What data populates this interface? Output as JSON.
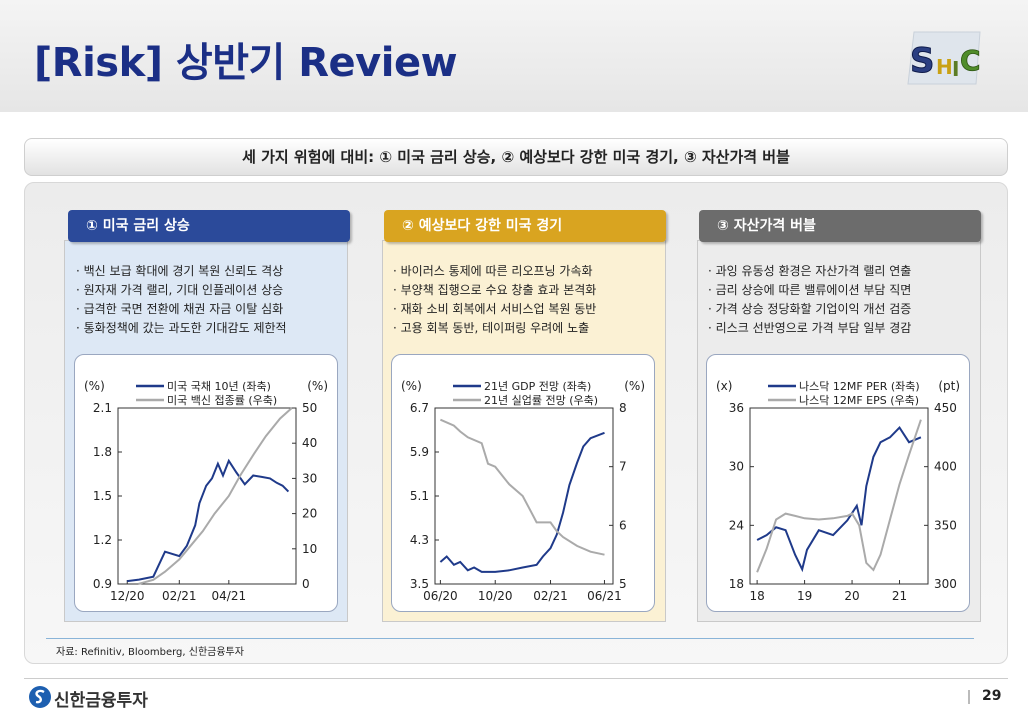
{
  "header": {
    "title": "[Risk] 상반기 Review",
    "logo_letters": [
      "S",
      "H",
      "I",
      "C"
    ]
  },
  "subtitle": "세 가지 위험에 대비: ① 미국 금리 상승, ② 예상보다 강한 미국 경기, ③ 자산가격 버블",
  "columns": [
    {
      "title": "① 미국 금리 상승",
      "header_color": "#2b4a9a",
      "bg_color": "#dde8f5",
      "bullets": [
        "· 백신 보급 확대에 경기 복원 신뢰도 격상",
        "· 원자재 가격 랠리, 기대 인플레이션 상승",
        "· 급격한 국면 전환에 채권 자금 이탈 심화",
        "· 통화정책에 갔는 과도한 기대감도 제한적"
      ]
    },
    {
      "title": "② 예상보다 강한 미국 경기",
      "header_color": "#d9a420",
      "bg_color": "#fbf1d4",
      "bullets": [
        "· 바이러스 통제에 따른 리오프닝 가속화",
        "· 부양책 집행으로 수요 창출 효과 본격화",
        "· 재화 소비 회복에서 서비스업 복원 동반",
        "· 고용 회복 동반, 테이퍼링 우려에 노출"
      ]
    },
    {
      "title": "③ 자산가격 버블",
      "header_color": "#6c6c6c",
      "bg_color": "#ececec",
      "bullets": [
        "· 과잉 유동성 환경은 자산가격 랠리 연출",
        "· 금리 상승에 따른 밸류에이션 부담 직면",
        "· 가격 상승 정당화할 기업이익 개선 검증",
        "· 리스크 선반영으로 가격 부담 일부 경감"
      ]
    }
  ],
  "chart_data": [
    {
      "type": "line",
      "left_unit": "(%)",
      "right_unit": "(%)",
      "left_ticks": [
        "2.1",
        "1.8",
        "1.5",
        "1.2",
        "0.9"
      ],
      "right_ticks": [
        "50",
        "40",
        "30",
        "20",
        "10",
        "0"
      ],
      "x_ticks": [
        "12/20",
        "02/21",
        "04/21"
      ],
      "ylim_left": [
        0.9,
        2.1
      ],
      "ylim_right": [
        0,
        50
      ],
      "series": [
        {
          "name": "미국 국채 10년 (좌축)",
          "axis": "left",
          "color": "#1f3a8a",
          "x": [
            "2020-12-01",
            "2020-12-15",
            "2021-01-01",
            "2021-01-15",
            "2021-02-01",
            "2021-02-10",
            "2021-02-20",
            "2021-02-25",
            "2021-03-05",
            "2021-03-12",
            "2021-03-19",
            "2021-03-25",
            "2021-04-01",
            "2021-04-10",
            "2021-04-20",
            "2021-04-30",
            "2021-05-10",
            "2021-05-20",
            "2021-05-28",
            "2021-06-04",
            "2021-06-11"
          ],
          "y": [
            0.92,
            0.93,
            0.95,
            1.12,
            1.09,
            1.16,
            1.3,
            1.45,
            1.57,
            1.62,
            1.72,
            1.64,
            1.74,
            1.66,
            1.58,
            1.64,
            1.63,
            1.62,
            1.59,
            1.57,
            1.53
          ]
        },
        {
          "name": "미국 백신 접종률 (우축)",
          "axis": "right",
          "color": "#aaaaaa",
          "x": [
            "2020-12-14",
            "2021-01-01",
            "2021-01-15",
            "2021-02-01",
            "2021-02-15",
            "2021-03-01",
            "2021-03-15",
            "2021-04-01",
            "2021-04-15",
            "2021-05-01",
            "2021-05-15",
            "2021-06-01",
            "2021-06-15"
          ],
          "y": [
            0,
            1.2,
            3.5,
            7,
            11,
            15,
            20,
            25,
            31,
            37,
            42,
            47,
            50
          ]
        }
      ]
    },
    {
      "type": "line",
      "left_unit": "(%)",
      "right_unit": "(%)",
      "left_ticks": [
        "6.7",
        "5.9",
        "5.1",
        "4.3",
        "3.5"
      ],
      "right_ticks": [
        "8",
        "7",
        "6",
        "5"
      ],
      "x_ticks": [
        "06/20",
        "10/20",
        "02/21",
        "06/21"
      ],
      "ylim_left": [
        3.5,
        6.7
      ],
      "ylim_right": [
        5,
        8
      ],
      "series": [
        {
          "name": "21년 GDP 전망 (좌축)",
          "axis": "left",
          "color": "#1f3a8a",
          "x": [
            "2020-06-01",
            "2020-06-15",
            "2020-07-01",
            "2020-07-15",
            "2020-08-01",
            "2020-08-15",
            "2020-09-01",
            "2020-10-01",
            "2020-11-01",
            "2020-12-01",
            "2021-01-01",
            "2021-01-15",
            "2021-02-01",
            "2021-02-15",
            "2021-03-01",
            "2021-03-15",
            "2021-04-01",
            "2021-04-15",
            "2021-05-01",
            "2021-06-01"
          ],
          "y": [
            3.9,
            4.0,
            3.85,
            3.9,
            3.75,
            3.8,
            3.72,
            3.72,
            3.75,
            3.8,
            3.85,
            4.0,
            4.15,
            4.4,
            4.8,
            5.3,
            5.7,
            6.0,
            6.15,
            6.25
          ]
        },
        {
          "name": "21년 실업률 전망 (우축)",
          "axis": "right",
          "color": "#aaaaaa",
          "x": [
            "2020-06-01",
            "2020-07-01",
            "2020-07-15",
            "2020-08-01",
            "2020-09-01",
            "2020-09-15",
            "2020-10-01",
            "2020-11-01",
            "2020-12-01",
            "2020-12-15",
            "2021-01-01",
            "2021-02-01",
            "2021-02-15",
            "2021-03-01",
            "2021-04-01",
            "2021-05-01",
            "2021-06-01"
          ],
          "y": [
            7.8,
            7.7,
            7.6,
            7.5,
            7.4,
            7.05,
            7.0,
            6.7,
            6.5,
            6.3,
            6.05,
            6.05,
            5.9,
            5.8,
            5.65,
            5.55,
            5.5
          ]
        }
      ]
    },
    {
      "type": "line",
      "left_unit": "(x)",
      "right_unit": "(pt)",
      "left_ticks": [
        "36",
        "30",
        "24",
        "18"
      ],
      "right_ticks": [
        "450",
        "400",
        "350",
        "300"
      ],
      "x_ticks": [
        "18",
        "19",
        "20",
        "21"
      ],
      "ylim_left": [
        18,
        36
      ],
      "ylim_right": [
        300,
        450
      ],
      "series": [
        {
          "name": "나스닥 12MF PER (좌축)",
          "axis": "left",
          "color": "#1f3a8a",
          "x": [
            2018.0,
            2018.2,
            2018.4,
            2018.6,
            2018.8,
            2018.95,
            2019.05,
            2019.3,
            2019.6,
            2019.9,
            2020.1,
            2020.2,
            2020.3,
            2020.45,
            2020.6,
            2020.8,
            2021.0,
            2021.2,
            2021.45
          ],
          "y": [
            22.5,
            23.0,
            23.8,
            23.5,
            21.0,
            19.5,
            21.5,
            23.5,
            23.0,
            24.5,
            26.0,
            24.0,
            28.0,
            31.0,
            32.5,
            33.0,
            34.0,
            32.5,
            33.0
          ]
        },
        {
          "name": "나스닥 12MF EPS (우축)",
          "axis": "right",
          "color": "#aaaaaa",
          "x": [
            2018.0,
            2018.2,
            2018.4,
            2018.6,
            2018.8,
            2019.0,
            2019.3,
            2019.6,
            2019.9,
            2020.0,
            2020.15,
            2020.3,
            2020.45,
            2020.6,
            2020.8,
            2021.0,
            2021.2,
            2021.45
          ],
          "y": [
            310,
            330,
            355,
            360,
            358,
            356,
            355,
            356,
            358,
            360,
            350,
            318,
            312,
            325,
            355,
            385,
            410,
            440
          ]
        }
      ]
    }
  ],
  "footer": {
    "source": "자료: Refinitiv, Bloomberg, 신한금융투자",
    "brand": "신한금융투자",
    "page": "29"
  }
}
